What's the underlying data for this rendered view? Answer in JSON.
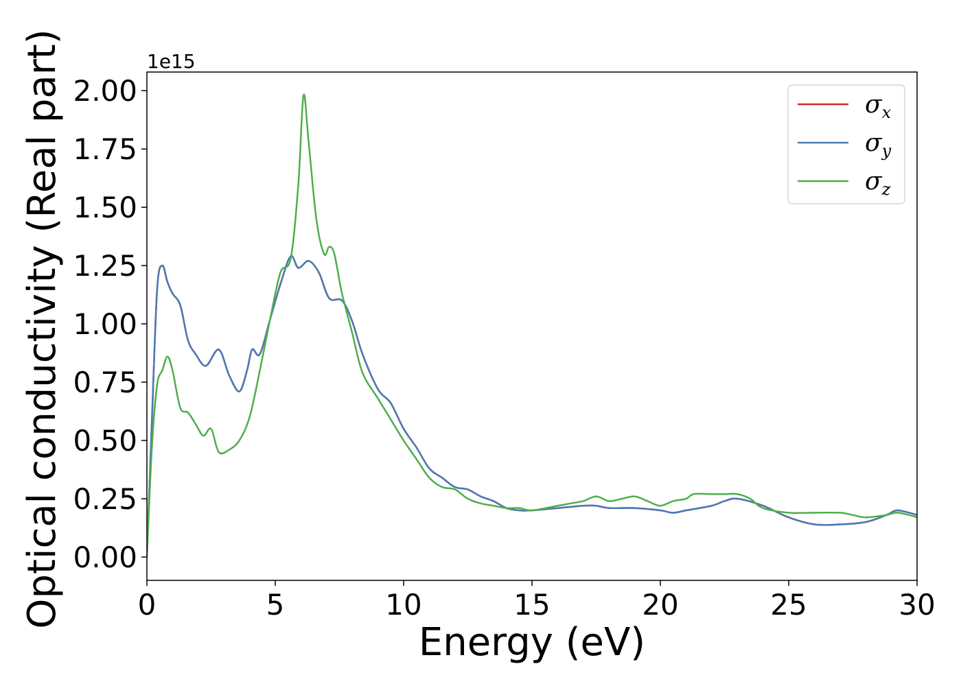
{
  "chart_data": {
    "type": "line",
    "title": "",
    "xlabel": "Energy (eV)",
    "ylabel": "Optical conductivity (Real part)",
    "y_offset_text": "1e15",
    "xlim": [
      0,
      30
    ],
    "ylim": [
      -0.1,
      2.08
    ],
    "y_scale_factor": 1000000000000000.0,
    "xticks": [
      0,
      5,
      10,
      15,
      20,
      25,
      30
    ],
    "xtick_labels": [
      "0",
      "5",
      "10",
      "15",
      "20",
      "25",
      "30"
    ],
    "yticks": [
      0.0,
      0.25,
      0.5,
      0.75,
      1.0,
      1.25,
      1.5,
      1.75,
      2.0
    ],
    "ytick_labels": [
      "0.00",
      "0.25",
      "0.50",
      "0.75",
      "1.00",
      "1.25",
      "1.50",
      "1.75",
      "2.00"
    ],
    "grid": false,
    "legend_position": "top-right",
    "legend": [
      {
        "symbol": "σ",
        "subscript": "x",
        "color": "#d62728"
      },
      {
        "symbol": "σ",
        "subscript": "y",
        "color": "#4a7ab5"
      },
      {
        "symbol": "σ",
        "subscript": "z",
        "color": "#4daf4a"
      }
    ],
    "series": [
      {
        "name": "σx",
        "color": "#d62728",
        "x": [
          0,
          0.2,
          0.4,
          0.6,
          0.8,
          1.0,
          1.3,
          1.6,
          1.9,
          2.3,
          2.8,
          3.2,
          3.6,
          3.9,
          4.1,
          4.4,
          4.8,
          5.2,
          5.6,
          5.9,
          6.3,
          6.7,
          7.1,
          7.6,
          8.0,
          8.4,
          9.0,
          9.5,
          10.0,
          10.5,
          11.0,
          11.5,
          12.0,
          12.5,
          13.0,
          13.5,
          14.0,
          14.5,
          15.0,
          16.0,
          17.0,
          17.5,
          18.0,
          19.0,
          20.0,
          20.5,
          21.0,
          22.0,
          22.5,
          23.0,
          24.0,
          25.0,
          26.0,
          27.0,
          28.0,
          28.8,
          29.2,
          29.7,
          30.0
        ],
        "y": [
          0.0,
          0.6,
          1.15,
          1.25,
          1.18,
          1.13,
          1.08,
          0.93,
          0.87,
          0.82,
          0.89,
          0.78,
          0.71,
          0.8,
          0.89,
          0.87,
          1.02,
          1.17,
          1.29,
          1.24,
          1.27,
          1.22,
          1.11,
          1.1,
          1.01,
          0.87,
          0.72,
          0.66,
          0.55,
          0.47,
          0.38,
          0.34,
          0.3,
          0.29,
          0.26,
          0.24,
          0.21,
          0.2,
          0.2,
          0.21,
          0.22,
          0.22,
          0.21,
          0.21,
          0.2,
          0.19,
          0.2,
          0.22,
          0.24,
          0.25,
          0.22,
          0.17,
          0.14,
          0.14,
          0.15,
          0.18,
          0.2,
          0.19,
          0.18
        ]
      },
      {
        "name": "σy",
        "color": "#4a7ab5",
        "x": [
          0,
          0.2,
          0.4,
          0.6,
          0.8,
          1.0,
          1.3,
          1.6,
          1.9,
          2.3,
          2.8,
          3.2,
          3.6,
          3.9,
          4.1,
          4.4,
          4.8,
          5.2,
          5.6,
          5.9,
          6.3,
          6.7,
          7.1,
          7.6,
          8.0,
          8.4,
          9.0,
          9.5,
          10.0,
          10.5,
          11.0,
          11.5,
          12.0,
          12.5,
          13.0,
          13.5,
          14.0,
          14.5,
          15.0,
          16.0,
          17.0,
          17.5,
          18.0,
          19.0,
          20.0,
          20.5,
          21.0,
          22.0,
          22.5,
          23.0,
          24.0,
          25.0,
          26.0,
          27.0,
          28.0,
          28.8,
          29.2,
          29.7,
          30.0
        ],
        "y": [
          0.0,
          0.6,
          1.15,
          1.25,
          1.18,
          1.13,
          1.08,
          0.93,
          0.87,
          0.82,
          0.89,
          0.78,
          0.71,
          0.8,
          0.89,
          0.87,
          1.02,
          1.17,
          1.29,
          1.24,
          1.27,
          1.22,
          1.11,
          1.1,
          1.01,
          0.87,
          0.72,
          0.66,
          0.55,
          0.47,
          0.38,
          0.34,
          0.3,
          0.29,
          0.26,
          0.24,
          0.21,
          0.2,
          0.2,
          0.21,
          0.22,
          0.22,
          0.21,
          0.21,
          0.2,
          0.19,
          0.2,
          0.22,
          0.24,
          0.25,
          0.22,
          0.17,
          0.14,
          0.14,
          0.15,
          0.18,
          0.2,
          0.19,
          0.18
        ]
      },
      {
        "name": "σz",
        "color": "#4daf4a",
        "x": [
          0,
          0.2,
          0.4,
          0.6,
          0.8,
          1.0,
          1.3,
          1.6,
          1.9,
          2.2,
          2.5,
          2.8,
          3.2,
          3.6,
          4.0,
          4.4,
          4.8,
          5.2,
          5.6,
          5.9,
          6.1,
          6.3,
          6.6,
          6.9,
          7.1,
          7.3,
          7.6,
          8.0,
          8.4,
          9.0,
          9.5,
          10.0,
          10.5,
          11.0,
          11.5,
          12.0,
          12.5,
          13.0,
          13.5,
          14.0,
          14.5,
          15.0,
          16.0,
          16.5,
          17.0,
          17.5,
          18.0,
          18.5,
          19.0,
          19.5,
          20.0,
          20.5,
          21.0,
          21.3,
          22.0,
          22.5,
          23.0,
          23.5,
          24.0,
          25.0,
          26.0,
          27.0,
          27.5,
          28.0,
          28.8,
          29.2,
          29.7,
          30.0
        ],
        "y": [
          0.0,
          0.48,
          0.74,
          0.8,
          0.86,
          0.8,
          0.64,
          0.62,
          0.57,
          0.52,
          0.55,
          0.45,
          0.46,
          0.5,
          0.6,
          0.8,
          1.02,
          1.22,
          1.28,
          1.6,
          1.98,
          1.78,
          1.45,
          1.3,
          1.33,
          1.3,
          1.13,
          0.96,
          0.79,
          0.68,
          0.59,
          0.5,
          0.42,
          0.34,
          0.3,
          0.29,
          0.25,
          0.23,
          0.22,
          0.21,
          0.21,
          0.2,
          0.22,
          0.23,
          0.24,
          0.26,
          0.24,
          0.25,
          0.26,
          0.24,
          0.22,
          0.24,
          0.25,
          0.27,
          0.27,
          0.27,
          0.27,
          0.25,
          0.21,
          0.19,
          0.19,
          0.19,
          0.18,
          0.17,
          0.18,
          0.19,
          0.18,
          0.17
        ]
      }
    ]
  }
}
